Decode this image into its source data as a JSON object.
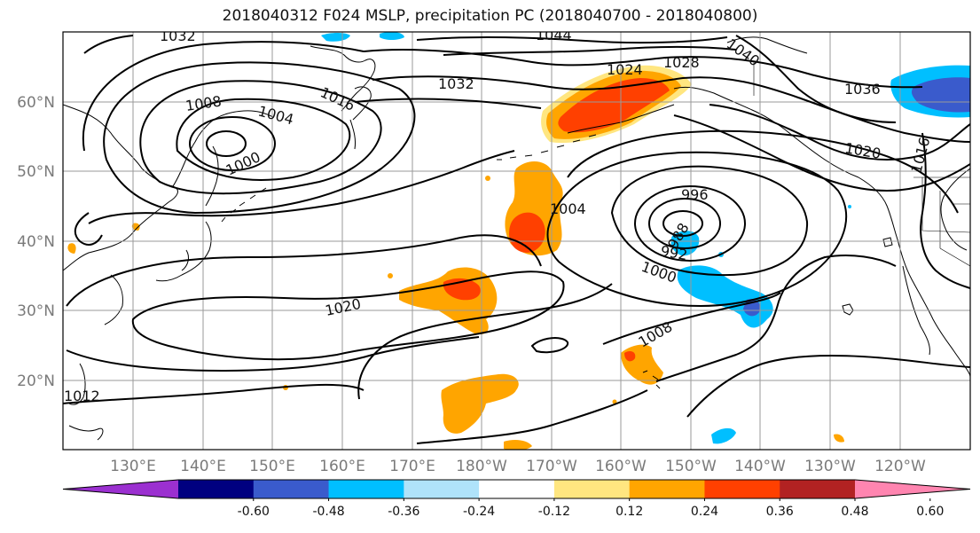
{
  "title": "2018040312 F024 MSLP, precipitation PC (2018040700 - 2018040800)",
  "map": {
    "lat_labels": [
      "60°N",
      "50°N",
      "40°N",
      "30°N",
      "20°N"
    ],
    "lon_labels": [
      "130°E",
      "140°E",
      "150°E",
      "160°E",
      "170°E",
      "180°W",
      "170°W",
      "160°W",
      "150°W",
      "140°W",
      "130°W",
      "120°W"
    ],
    "isobar_labels": [
      "1032",
      "1044",
      "1040",
      "1024",
      "1028",
      "1036",
      "1032",
      "1016",
      "1008",
      "1004",
      "1000",
      "1020",
      "1016",
      "996",
      "1004",
      "988",
      "992",
      "1000",
      "1020",
      "1008",
      "1012"
    ],
    "low_centers": [
      "1000",
      "988"
    ],
    "high_centers": [
      "1032",
      "1044",
      "1036"
    ]
  },
  "colorbar": {
    "labels": [
      "-0.60",
      "-0.48",
      "-0.36",
      "-0.24",
      "-0.12",
      "0.12",
      "0.24",
      "0.36",
      "0.48",
      "0.60"
    ],
    "colors": [
      "#9b30d0",
      "#000080",
      "#3a5bcc",
      "#00bfff",
      "#afe3fa",
      "#ffffff",
      "#ffe680",
      "#ffa500",
      "#ff4000",
      "#b22222",
      "#ff85b0"
    ]
  }
}
